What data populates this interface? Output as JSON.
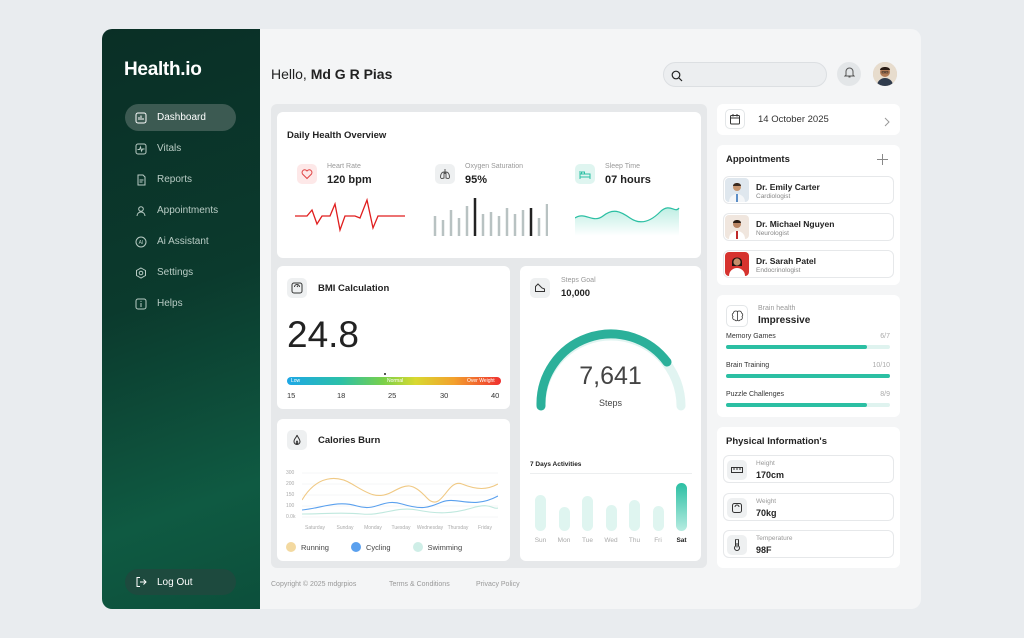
{
  "app": {
    "logo": "Health.io"
  },
  "sidebar": {
    "items": [
      {
        "label": "Dashboard",
        "icon": "dashboard-icon",
        "active": true
      },
      {
        "label": "Vitals",
        "icon": "vitals-icon"
      },
      {
        "label": "Reports",
        "icon": "reports-icon"
      },
      {
        "label": "Appointments",
        "icon": "appointments-icon"
      },
      {
        "label": "Ai Assistant",
        "icon": "ai-icon"
      },
      {
        "label": "Settings",
        "icon": "settings-icon"
      },
      {
        "label": "Helps",
        "icon": "info-icon"
      }
    ],
    "logout": "Log Out"
  },
  "header": {
    "greeting": "Hello,",
    "user": "Md G R Pias"
  },
  "overview": {
    "title": "Daily Health Overview",
    "heart": {
      "label": "Heart Rate",
      "value": "120 bpm"
    },
    "oxygen": {
      "label": "Oxygen Saturation",
      "value": "95%"
    },
    "sleep": {
      "label": "Sleep Time",
      "value": "07 hours"
    }
  },
  "bmi": {
    "title": "BMI Calculation",
    "value": "24.8",
    "low": "Low",
    "normal": "Normal",
    "over": "Over Weight",
    "ticks": [
      "15",
      "18",
      "25",
      "30",
      "40"
    ]
  },
  "steps": {
    "label": "Steps Goal",
    "goal": "10,000",
    "count": "7,641",
    "unit": "Steps",
    "progress": 0.7641,
    "activities_title": "7 Days Activities",
    "days": [
      "Sun",
      "Mon",
      "Tue",
      "Wed",
      "Thu",
      "Fri",
      "Sat"
    ],
    "day_values": [
      0.75,
      0.5,
      0.72,
      0.55,
      0.65,
      0.52,
      1.0
    ]
  },
  "calories": {
    "title": "Calories Burn",
    "yticks": [
      "300",
      "200",
      "150",
      "100",
      "0.0k"
    ],
    "days": [
      "Saturday",
      "Sunday",
      "Monday",
      "Tuesday",
      "Wednesday",
      "Thursday",
      "Friday"
    ],
    "legend": [
      "Running",
      "Cycling",
      "Swimming"
    ],
    "colors": {
      "running": "#f3d9a0",
      "cycling": "#5aa0ee",
      "swimming": "#cfeee7"
    }
  },
  "date": {
    "value": "14 October 2025"
  },
  "appointments": {
    "title": "Appointments",
    "doctors": [
      {
        "name": "Dr. Emily Carter",
        "specialty": "Cardiologist"
      },
      {
        "name": "Dr. Michael Nguyen",
        "specialty": "Neurologist"
      },
      {
        "name": "Dr. Sarah Patel",
        "specialty": "Endocrinologist"
      }
    ]
  },
  "brain": {
    "label": "Brain health",
    "status": "Impressive",
    "items": [
      {
        "label": "Memory Games",
        "score": "6/7",
        "fraction": 0.857
      },
      {
        "label": "Brain Training",
        "score": "10/10",
        "fraction": 1.0
      },
      {
        "label": "Puzzle Challenges",
        "score": "8/9",
        "fraction": 0.889
      }
    ]
  },
  "physical": {
    "title": "Physical Information's",
    "items": [
      {
        "label": "Height",
        "value": "170cm"
      },
      {
        "label": "Weight",
        "value": "70kg"
      },
      {
        "label": "Temperature",
        "value": "98F"
      }
    ]
  },
  "footer": {
    "copyright": "Copyright © 2025 mdgrpios",
    "terms": "Terms & Conditions",
    "privacy": "Privacy Policy"
  }
}
